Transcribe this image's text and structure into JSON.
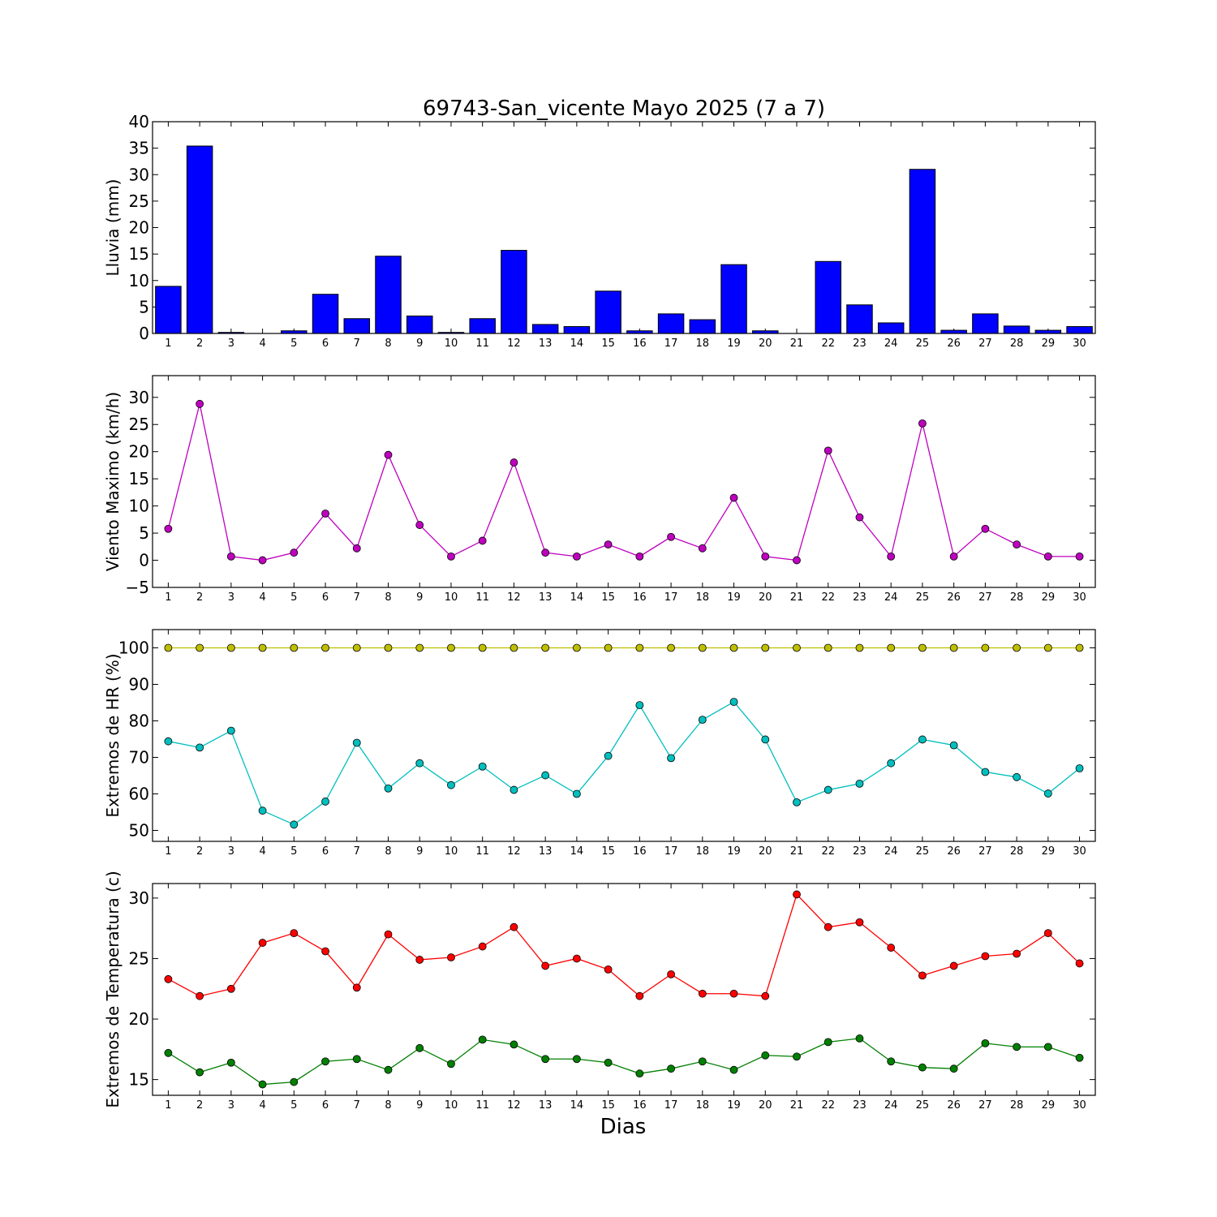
{
  "title": "69743-San_vicente Mayo 2025  (7 a 7)",
  "xlabel": "Dias",
  "colors": {
    "rain": "#0000ff",
    "wind": "#bf00bf",
    "hr_max": "#bfbf00",
    "hr_min": "#00bfbf",
    "t_max": "#ff0000",
    "t_min": "#008000"
  },
  "chart_data": [
    {
      "type": "bar",
      "ylabel": "Lluvia (mm)",
      "ylim": [
        0,
        40
      ],
      "yticks": [
        0,
        5,
        10,
        15,
        20,
        25,
        30,
        35,
        40
      ],
      "categories": [
        "1",
        "2",
        "3",
        "4",
        "5",
        "6",
        "7",
        "8",
        "9",
        "10",
        "11",
        "12",
        "13",
        "14",
        "15",
        "16",
        "17",
        "18",
        "19",
        "20",
        "21",
        "22",
        "23",
        "24",
        "25",
        "26",
        "27",
        "28",
        "29",
        "30"
      ],
      "series": [
        {
          "values": [
            8.9,
            35.4,
            0.2,
            0.0,
            0.5,
            7.4,
            2.8,
            14.6,
            3.3,
            0.2,
            2.8,
            15.7,
            1.7,
            1.3,
            8.0,
            0.5,
            3.7,
            2.6,
            13.0,
            0.5,
            0.0,
            13.6,
            5.4,
            2.0,
            31.0,
            0.6,
            3.7,
            1.4,
            0.6,
            1.3
          ]
        }
      ]
    },
    {
      "type": "line",
      "ylabel": "Viento Maximo (km/h)",
      "ylim": [
        -5,
        34
      ],
      "yticks": [
        -5,
        0,
        5,
        10,
        15,
        20,
        25,
        30
      ],
      "x": [
        1,
        2,
        3,
        4,
        5,
        6,
        7,
        8,
        9,
        10,
        11,
        12,
        13,
        14,
        15,
        16,
        17,
        18,
        19,
        20,
        21,
        22,
        23,
        24,
        25,
        26,
        27,
        28,
        29,
        30
      ],
      "series": [
        {
          "values": [
            5.8,
            28.8,
            0.7,
            0.0,
            1.4,
            8.6,
            2.2,
            19.4,
            6.5,
            0.7,
            3.6,
            18.0,
            1.4,
            0.7,
            2.9,
            0.7,
            4.3,
            2.2,
            11.5,
            0.7,
            0.0,
            20.2,
            7.9,
            0.7,
            25.2,
            0.7,
            5.8,
            2.9,
            0.7,
            0.7
          ]
        }
      ]
    },
    {
      "type": "line",
      "ylabel": "Extremos de HR (%)",
      "ylim": [
        47,
        105
      ],
      "yticks": [
        50,
        60,
        70,
        80,
        90,
        100
      ],
      "x": [
        1,
        2,
        3,
        4,
        5,
        6,
        7,
        8,
        9,
        10,
        11,
        12,
        13,
        14,
        15,
        16,
        17,
        18,
        19,
        20,
        21,
        22,
        23,
        24,
        25,
        26,
        27,
        28,
        29,
        30
      ],
      "series": [
        {
          "values": [
            100,
            100,
            100,
            100,
            100,
            100,
            100,
            100,
            100,
            100,
            100,
            100,
            100,
            100,
            100,
            100,
            100,
            100,
            100,
            100,
            100,
            100,
            100,
            100,
            100,
            100,
            100,
            100,
            100,
            100
          ]
        },
        {
          "values": [
            74.4,
            72.7,
            77.3,
            55.4,
            51.6,
            57.9,
            74.0,
            61.5,
            68.4,
            62.4,
            67.5,
            61.1,
            65.1,
            60.0,
            70.4,
            84.3,
            69.8,
            80.3,
            85.2,
            74.9,
            57.7,
            61.1,
            62.8,
            68.4,
            74.9,
            73.3,
            66.0,
            64.6,
            60.1,
            67.0
          ]
        }
      ]
    },
    {
      "type": "line",
      "ylabel": "Extremos de Temperatura (c)",
      "ylim": [
        13.7,
        31.2
      ],
      "yticks": [
        15,
        20,
        25,
        30
      ],
      "x": [
        1,
        2,
        3,
        4,
        5,
        6,
        7,
        8,
        9,
        10,
        11,
        12,
        13,
        14,
        15,
        16,
        17,
        18,
        19,
        20,
        21,
        22,
        23,
        24,
        25,
        26,
        27,
        28,
        29,
        30
      ],
      "series": [
        {
          "values": [
            23.3,
            21.9,
            22.5,
            26.3,
            27.1,
            25.6,
            22.6,
            27.0,
            24.9,
            25.1,
            26.0,
            27.6,
            24.4,
            25.0,
            24.1,
            21.9,
            23.7,
            22.1,
            22.1,
            21.9,
            30.3,
            27.6,
            28.0,
            25.9,
            23.6,
            24.4,
            25.2,
            25.4,
            27.1,
            24.6
          ]
        },
        {
          "values": [
            17.2,
            15.6,
            16.4,
            14.6,
            14.8,
            16.5,
            16.7,
            15.8,
            17.6,
            16.3,
            18.3,
            17.9,
            16.7,
            16.7,
            16.4,
            15.5,
            15.9,
            16.5,
            15.8,
            17.0,
            16.9,
            18.1,
            18.4,
            16.5,
            16.0,
            15.9,
            18.0,
            17.7,
            17.7,
            16.8
          ]
        }
      ]
    }
  ]
}
